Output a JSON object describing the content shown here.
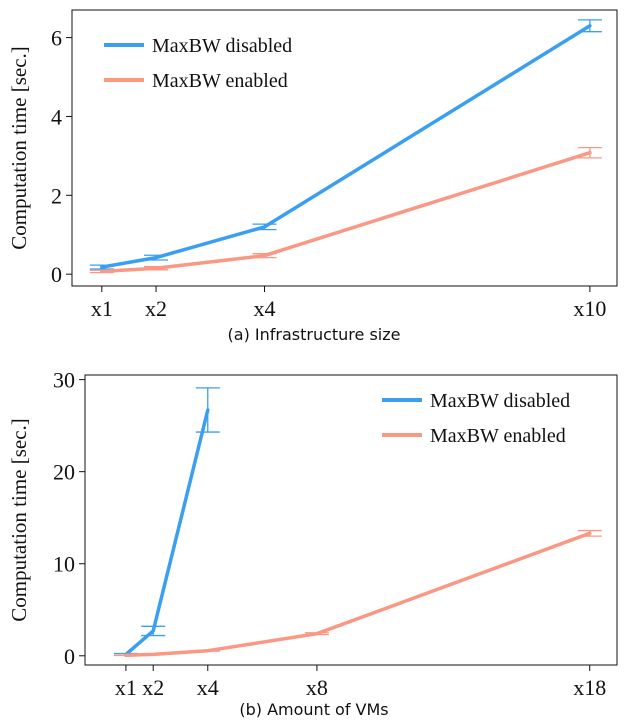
{
  "chart_data": [
    {
      "type": "line",
      "caption": "(a) Infrastructure size",
      "ylabel": "Computation time [sec.]",
      "xlabel": "",
      "x": [
        1,
        2,
        4,
        10
      ],
      "tick_labels": [
        "x1",
        "x2",
        "x4",
        "x10"
      ],
      "xlim": [
        0.45,
        10.5
      ],
      "ylim": [
        -0.3,
        6.7
      ],
      "yticks": [
        0,
        2,
        4,
        6
      ],
      "grid": false,
      "legend": "top-left",
      "series": [
        {
          "name": "MaxBW disabled",
          "color": "#3a9ff0",
          "values": [
            0.18,
            0.42,
            1.2,
            6.3
          ],
          "errors": [
            0.05,
            0.06,
            0.07,
            0.15
          ]
        },
        {
          "name": "MaxBW enabled",
          "color": "#fa9883",
          "values": [
            0.07,
            0.15,
            0.47,
            3.08
          ],
          "errors": [
            0.03,
            0.04,
            0.05,
            0.13
          ]
        }
      ]
    },
    {
      "type": "line",
      "caption": "(b) Amount of VMs",
      "ylabel": "Computation time [sec.]",
      "xlabel": "",
      "x": [
        1,
        2,
        4,
        8,
        18
      ],
      "tick_labels": [
        "x1",
        "x2",
        "x4",
        "x8",
        "x18"
      ],
      "xlim": [
        -0.5,
        19
      ],
      "ylim": [
        -1,
        30.5
      ],
      "yticks": [
        0,
        10,
        20,
        30
      ],
      "grid": false,
      "legend": "top-right",
      "series": [
        {
          "name": "MaxBW disabled",
          "color": "#3a9ff0",
          "x": [
            1,
            2,
            4
          ],
          "values": [
            0.15,
            2.7,
            26.7
          ],
          "errors": [
            0.1,
            0.5,
            2.4
          ]
        },
        {
          "name": "MaxBW enabled",
          "color": "#fa9883",
          "x": [
            1,
            2,
            4,
            8,
            18
          ],
          "values": [
            0.05,
            0.15,
            0.55,
            2.4,
            13.3
          ],
          "errors": [
            0.02,
            0.03,
            0.05,
            0.1,
            0.3
          ]
        }
      ]
    }
  ]
}
